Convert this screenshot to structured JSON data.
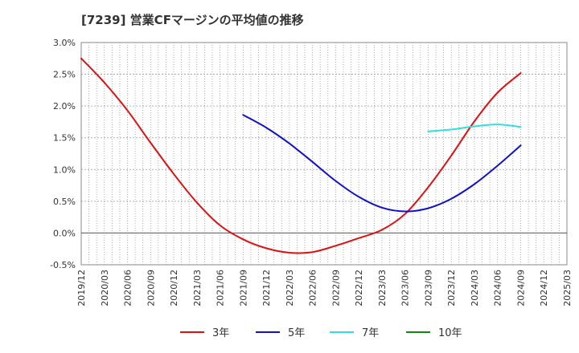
{
  "title": "[7239]  営業CFマージンの平均値の推移",
  "chart_data": {
    "type": "line",
    "title": "[7239]  営業CFマージンの平均値の推移",
    "xlabel": "",
    "ylabel": "",
    "ylim": [
      -0.5,
      3.0
    ],
    "yticks": [
      3.0,
      2.5,
      2.0,
      1.5,
      1.0,
      0.5,
      0.0,
      -0.5
    ],
    "ytick_labels": [
      "3.0%",
      "2.5%",
      "2.0%",
      "1.5%",
      "1.0%",
      "0.5%",
      "0.0%",
      "-0.5%"
    ],
    "x_labels": [
      "2019/12",
      "2020/03",
      "2020/06",
      "2020/09",
      "2020/12",
      "2021/03",
      "2021/06",
      "2021/09",
      "2021/12",
      "2022/03",
      "2022/06",
      "2022/09",
      "2022/12",
      "2023/03",
      "2023/06",
      "2023/09",
      "2023/12",
      "2024/03",
      "2024/06",
      "2024/09",
      "2024/12",
      "2025/03"
    ],
    "grid": true,
    "legend_position": "bottom",
    "series": [
      {
        "name": "3年",
        "color": "#dd1111",
        "x": [
          "2019/12",
          "2020/03",
          "2020/06",
          "2020/09",
          "2020/12",
          "2021/03",
          "2021/06",
          "2021/09",
          "2021/12",
          "2022/03",
          "2022/06",
          "2022/09",
          "2022/12",
          "2023/03",
          "2023/06",
          "2023/09",
          "2023/12",
          "2024/03",
          "2024/06",
          "2024/09"
        ],
        "values": [
          2.75,
          2.37,
          1.93,
          1.42,
          0.93,
          0.48,
          0.12,
          -0.1,
          -0.24,
          -0.31,
          -0.3,
          -0.2,
          -0.08,
          0.05,
          0.3,
          0.72,
          1.22,
          1.76,
          2.21,
          2.52
        ]
      },
      {
        "name": "5年",
        "color": "#1111cc",
        "x": [
          "2021/09",
          "2021/12",
          "2022/03",
          "2022/06",
          "2022/09",
          "2022/12",
          "2023/03",
          "2023/06",
          "2023/09",
          "2023/12",
          "2024/03",
          "2024/06",
          "2024/09"
        ],
        "values": [
          1.86,
          1.66,
          1.41,
          1.12,
          0.82,
          0.57,
          0.4,
          0.34,
          0.39,
          0.54,
          0.77,
          1.06,
          1.38
        ]
      },
      {
        "name": "7年",
        "color": "#33dddd",
        "x": [
          "2023/09",
          "2023/12",
          "2024/03",
          "2024/06",
          "2024/09"
        ],
        "values": [
          1.6,
          1.63,
          1.68,
          1.71,
          1.67
        ]
      },
      {
        "name": "10年",
        "color": "#118811",
        "x": [],
        "values": []
      }
    ]
  }
}
